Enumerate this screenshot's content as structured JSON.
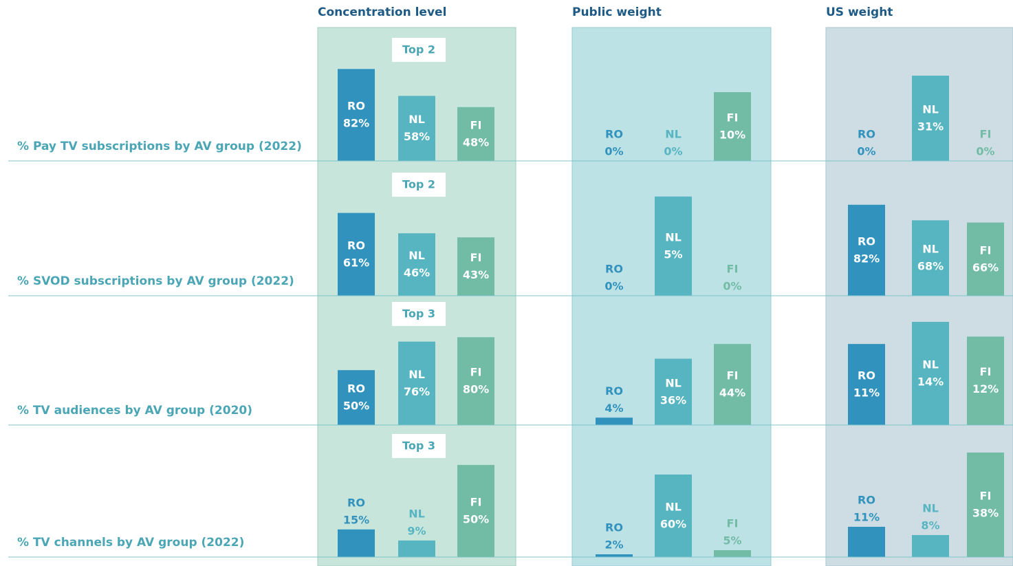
{
  "chart_data": {
    "type": "bar",
    "columns": [
      "Concentration level",
      "Public weight",
      "US weight"
    ],
    "categories": [
      "RO",
      "NL",
      "FI"
    ],
    "colors": [
      "#3193bd",
      "#57b5c2",
      "#72bca5"
    ],
    "rows": [
      {
        "label": "% Pay TV subscriptions by AV group (2022)",
        "note": "Top 2",
        "panels": [
          {
            "ylim": [
              0,
              92
            ],
            "values": [
              82,
              58,
              48
            ],
            "value_labels": [
              "82%",
              "58%",
              "48%"
            ]
          },
          {
            "ylim": [
              0,
              15
            ],
            "values": [
              0,
              0,
              10
            ],
            "value_labels": [
              "0%",
              "0%",
              "10%"
            ]
          },
          {
            "ylim": [
              0,
              37.5
            ],
            "values": [
              0,
              31,
              0
            ],
            "value_labels": [
              "0%",
              "31%",
              "0%"
            ]
          }
        ]
      },
      {
        "label": "% SVOD subscriptions by AV group (2022)",
        "note": "Top 2",
        "panels": [
          {
            "ylim": [
              0,
              76
            ],
            "values": [
              61,
              46,
              43
            ],
            "value_labels": [
              "61%",
              "46%",
              "43%"
            ]
          },
          {
            "ylim": [
              0,
              5.2
            ],
            "values": [
              0,
              5,
              0
            ],
            "value_labels": [
              "0%",
              "5%",
              "0%"
            ]
          },
          {
            "ylim": [
              0,
              93
            ],
            "values": [
              82,
              68,
              66
            ],
            "value_labels": [
              "82%",
              "68%",
              "66%"
            ]
          }
        ]
      },
      {
        "label": "% TV audiences by AV group (2020)",
        "note": "Top 3",
        "panels": [
          {
            "ylim": [
              0,
              94
            ],
            "values": [
              50,
              76,
              80
            ],
            "value_labels": [
              "50%",
              "76%",
              "80%"
            ]
          },
          {
            "ylim": [
              0,
              56
            ],
            "values": [
              4,
              36,
              44
            ],
            "value_labels": [
              "4%",
              "36%",
              "44%"
            ]
          },
          {
            "ylim": [
              0,
              14
            ],
            "values": [
              11,
              14,
              12
            ],
            "value_labels": [
              "11%",
              "14%",
              "12%"
            ]
          }
        ]
      },
      {
        "label": "% TV channels by AV group (2022)",
        "note": "Top 3",
        "panels": [
          {
            "ylim": [
              0,
              56
            ],
            "values": [
              15,
              9,
              50
            ],
            "value_labels": [
              "15%",
              "9%",
              "50%"
            ]
          },
          {
            "ylim": [
              0,
              75
            ],
            "values": [
              2,
              60,
              5
            ],
            "value_labels": [
              "2%",
              "60%",
              "5%"
            ]
          },
          {
            "ylim": [
              0,
              37.5
            ],
            "values": [
              11,
              8,
              38
            ],
            "value_labels": [
              "11%",
              "8%",
              "38%"
            ]
          }
        ]
      }
    ]
  }
}
